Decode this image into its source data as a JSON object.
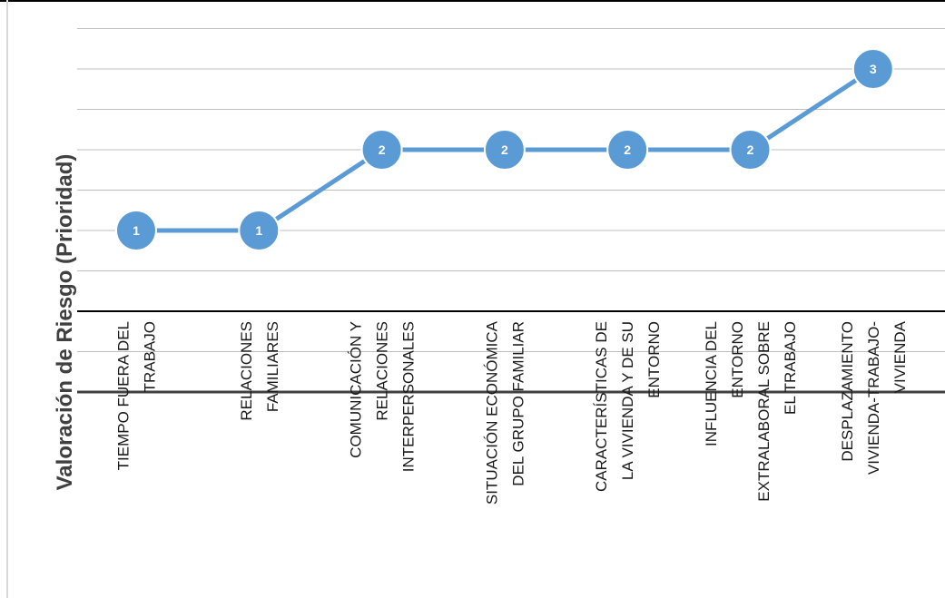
{
  "chart_data": {
    "type": "line",
    "ylabel": "Valoración de Riesgo (Prioridad)",
    "xlabel": "",
    "categories": [
      [
        "TIEMPO FUERA DEL",
        "TRABAJO"
      ],
      [
        "RELACIONES",
        "FAMILIARES"
      ],
      [
        "COMUNICACIÓN Y",
        "RELACIONES",
        "INTERPERSONALES"
      ],
      [
        "SITUACIÓN ECONÓMICA",
        "DEL GRUPO FAMILIAR"
      ],
      [
        "CARACTERÍSTICAS DE",
        "LA VIVIENDA Y DE SU",
        "ENTORNO"
      ],
      [
        "INFLUENCIA DEL",
        "ENTORNO",
        "EXTRALABORAL SOBRE",
        "EL TRABAJO"
      ],
      [
        "DESPLAZAMIENTO",
        "VIVIENDA-TRABAJO-",
        "VIVIENDA"
      ]
    ],
    "values": [
      1,
      1,
      2,
      2,
      2,
      2,
      3
    ],
    "data_labels": [
      "1",
      "1",
      "2",
      "2",
      "2",
      "2",
      "3"
    ],
    "ylim": [
      -1,
      4
    ],
    "gridlines": [
      -0.5,
      0,
      0.5,
      1,
      1.5,
      2,
      2.5,
      3,
      3.5
    ],
    "y_tick_labels_shown": false,
    "grid": true,
    "legend": "none",
    "colors": {
      "line": "#5b9bd5",
      "marker": "#5b9bd5",
      "marker_border": "#ffffff",
      "gridline": "#bfbfbf",
      "axis": "#404040"
    }
  }
}
